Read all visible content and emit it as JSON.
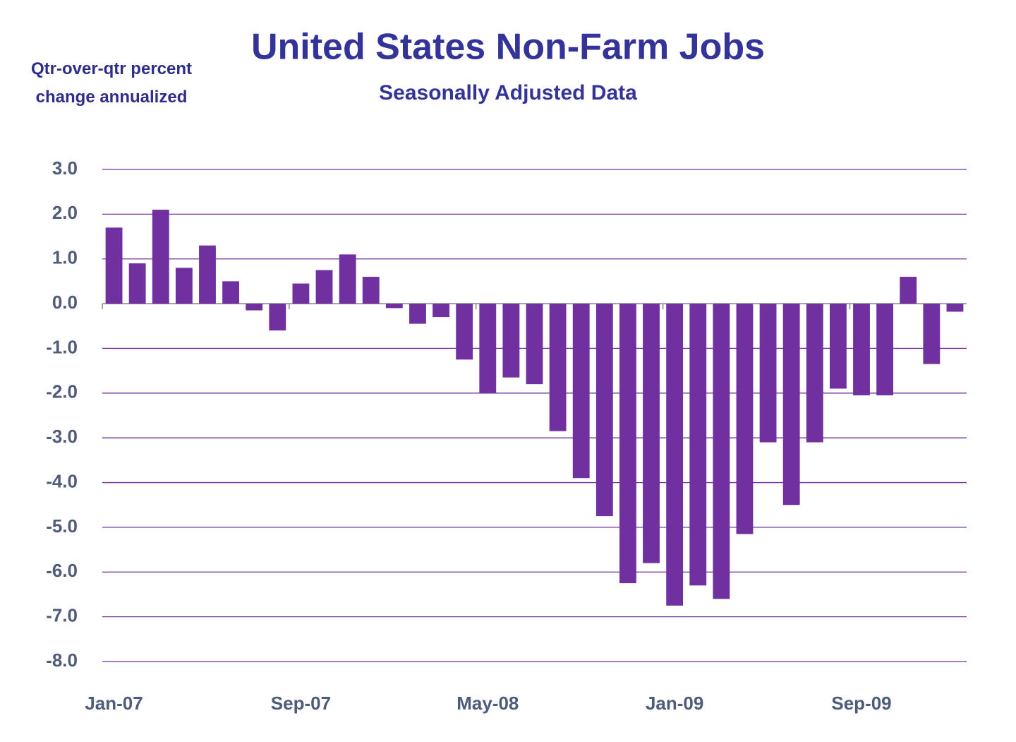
{
  "chart_data": {
    "type": "bar",
    "title": "United States Non-Farm Jobs",
    "subtitle": "Seasonally Adjusted Data",
    "y_label": "Qtr-over-qtr percent change annualized",
    "categories": [
      "Jan-07",
      null,
      null,
      null,
      null,
      null,
      null,
      null,
      "Sep-07",
      null,
      null,
      null,
      null,
      null,
      null,
      null,
      "May-08",
      null,
      null,
      null,
      null,
      null,
      null,
      null,
      "Jan-09",
      null,
      null,
      null,
      null,
      null,
      null,
      null,
      "Sep-09",
      null,
      null,
      null,
      null
    ],
    "values": [
      1.7,
      0.9,
      2.1,
      0.8,
      1.3,
      0.5,
      -0.15,
      -0.6,
      0.45,
      0.75,
      1.1,
      0.6,
      -0.1,
      -0.45,
      -0.3,
      -1.25,
      -2.0,
      -1.65,
      -1.8,
      -2.85,
      -3.9,
      -4.75,
      -6.25,
      -5.8,
      -6.75,
      -6.3,
      -6.6,
      -5.15,
      -3.1,
      -4.5,
      -3.1,
      -1.9,
      -2.05,
      -2.05,
      0.6,
      -1.35,
      -0.18
    ],
    "color": "#7030a0",
    "ylim": [
      -8,
      3
    ],
    "yticks": [
      {
        "value": 3,
        "label": "3.0"
      },
      {
        "value": 2,
        "label": "2.0"
      },
      {
        "value": 1,
        "label": "1.0"
      },
      {
        "value": 0,
        "label": "0.0"
      },
      {
        "value": -1,
        "label": "-1.0"
      },
      {
        "value": -2,
        "label": "-2.0"
      },
      {
        "value": -3,
        "label": "-3.0"
      },
      {
        "value": -4,
        "label": "-4.0"
      },
      {
        "value": -5,
        "label": "-5.0"
      },
      {
        "value": -6,
        "label": "-6.0"
      },
      {
        "value": -7,
        "label": "-7.0"
      },
      {
        "value": -8,
        "label": "-8.0"
      }
    ],
    "grid": true,
    "grid_color": "#7030a0"
  }
}
